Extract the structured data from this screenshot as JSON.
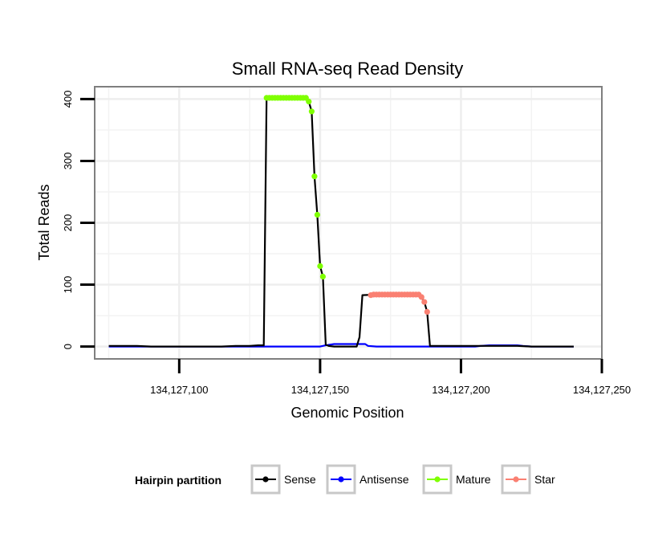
{
  "chart_data": {
    "type": "line",
    "title": "Small RNA-seq Read Density",
    "xlabel": "Genomic Position",
    "ylabel": "Total Reads",
    "xlim": [
      134127070,
      134127250
    ],
    "ylim": [
      -20,
      420
    ],
    "x_ticks": [
      134127100,
      134127150,
      134127200,
      134127250
    ],
    "x_tick_labels": [
      "134,127,100",
      "134,127,150",
      "134,127,200",
      "134,127,250"
    ],
    "y_ticks": [
      0,
      100,
      200,
      300,
      400
    ],
    "y_tick_labels": [
      "0",
      "100",
      "200",
      "300",
      "400"
    ],
    "grid": true,
    "legend": {
      "title": "Hairpin partition",
      "position": "bottom",
      "entries": [
        {
          "name": "Sense",
          "color": "#000000"
        },
        {
          "name": "Antisense",
          "color": "#0000ff"
        },
        {
          "name": "Mature",
          "color": "#7fff00"
        },
        {
          "name": "Star",
          "color": "#fa8072"
        }
      ]
    },
    "series": [
      {
        "name": "Sense",
        "color": "#000000",
        "kind": "line",
        "x": [
          134127075,
          134127080,
          134127085,
          134127090,
          134127095,
          134127100,
          134127105,
          134127110,
          134127115,
          134127120,
          134127125,
          134127128,
          134127129,
          134127130,
          134127131,
          134127135,
          134127140,
          134127145,
          134127146,
          134127147,
          134127148,
          134127149,
          134127150,
          134127151,
          134127152,
          134127153,
          134127155,
          134127160,
          134127163,
          134127164,
          134127165,
          134127170,
          134127175,
          134127180,
          134127185,
          134127186,
          134127187,
          134127188,
          134127189,
          134127190,
          134127195,
          134127200,
          134127205,
          134127210,
          134127215,
          134127220,
          134127225,
          134127230,
          134127235,
          134127240
        ],
        "values": [
          1,
          1,
          1,
          0,
          0,
          0,
          0,
          0,
          0,
          1,
          1,
          2,
          2,
          2,
          402,
          402,
          402,
          402,
          396,
          380,
          275,
          213,
          130,
          113,
          3,
          1,
          0,
          0,
          0,
          15,
          83,
          84,
          84,
          84,
          84,
          80,
          72,
          56,
          1,
          1,
          1,
          1,
          1,
          1,
          1,
          1,
          0,
          0,
          0,
          0
        ]
      },
      {
        "name": "Antisense",
        "color": "#0000ff",
        "kind": "line",
        "x": [
          134127075,
          134127145,
          134127150,
          134127151,
          134127152,
          134127155,
          134127160,
          134127163,
          134127164,
          134127165,
          134127166,
          134127167,
          134127170,
          134127200,
          134127205,
          134127207,
          134127210,
          134127215,
          134127220,
          134127222,
          134127225,
          134127240
        ],
        "values": [
          0,
          0,
          0,
          1,
          2,
          4,
          4,
          4,
          4,
          4,
          4,
          1,
          0,
          0,
          0,
          1,
          2,
          2,
          2,
          1,
          0,
          0
        ]
      },
      {
        "name": "Mature",
        "color": "#7fff00",
        "kind": "points",
        "x": [
          134127131,
          134127132,
          134127133,
          134127134,
          134127135,
          134127136,
          134127137,
          134127138,
          134127139,
          134127140,
          134127141,
          134127142,
          134127143,
          134127144,
          134127145,
          134127146,
          134127147,
          134127148,
          134127149,
          134127150,
          134127151
        ],
        "values": [
          402,
          402,
          402,
          402,
          402,
          402,
          402,
          402,
          402,
          402,
          402,
          402,
          402,
          402,
          402,
          396,
          380,
          275,
          213,
          130,
          113
        ]
      },
      {
        "name": "Star",
        "color": "#fa8072",
        "kind": "points",
        "x": [
          134127168,
          134127169,
          134127170,
          134127171,
          134127172,
          134127173,
          134127174,
          134127175,
          134127176,
          134127177,
          134127178,
          134127179,
          134127180,
          134127181,
          134127182,
          134127183,
          134127184,
          134127185,
          134127186,
          134127187,
          134127188
        ],
        "values": [
          83,
          84,
          84,
          84,
          84,
          84,
          84,
          84,
          84,
          84,
          84,
          84,
          84,
          84,
          84,
          84,
          84,
          84,
          80,
          72,
          56
        ]
      }
    ]
  }
}
